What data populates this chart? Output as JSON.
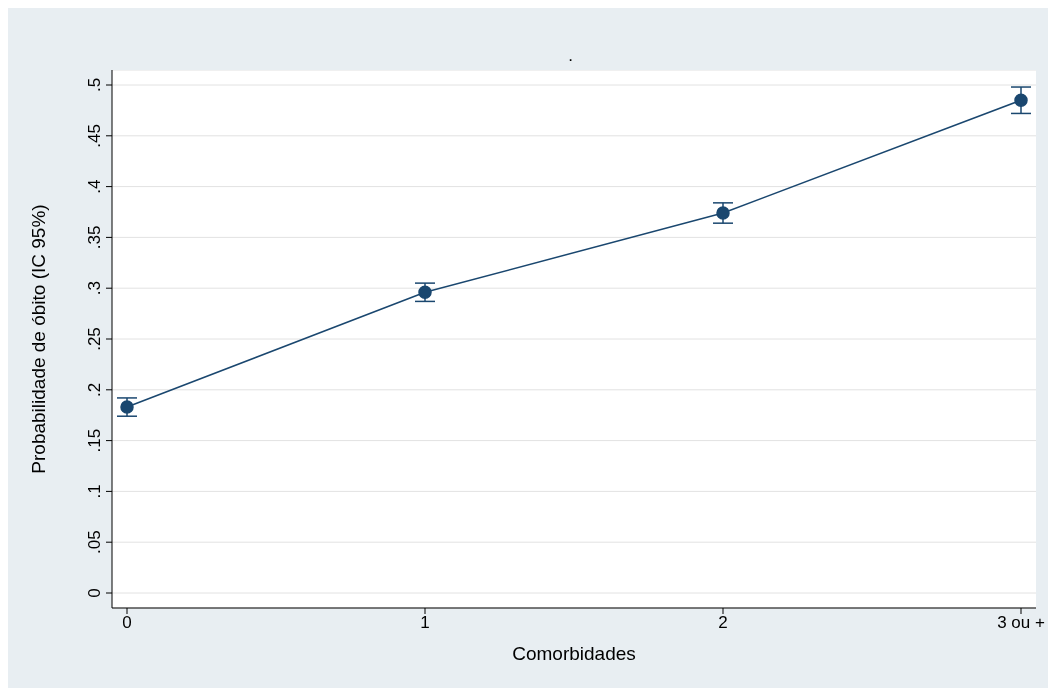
{
  "chart_data": {
    "type": "line",
    "title": ".",
    "xlabel": "Comorbidades",
    "ylabel": "Probabilidade de óbito (IC 95%)",
    "categories": [
      "0",
      "1",
      "2",
      "3 ou +"
    ],
    "series": [
      {
        "color": "#1a476f",
        "values": [
          0.183,
          0.296,
          0.374,
          0.485
        ],
        "errors": [
          0.009,
          0.009,
          0.01,
          0.013
        ]
      }
    ],
    "ylim": [
      0,
      0.5
    ],
    "yticks": [
      {
        "value": 0,
        "label": "0"
      },
      {
        "value": 0.05,
        "label": ".05"
      },
      {
        "value": 0.1,
        "label": ".1"
      },
      {
        "value": 0.15,
        "label": ".15"
      },
      {
        "value": 0.2,
        "label": ".2"
      },
      {
        "value": 0.25,
        "label": ".25"
      },
      {
        "value": 0.3,
        "label": ".3"
      },
      {
        "value": 0.35,
        "label": ".35"
      },
      {
        "value": 0.4,
        "label": ".4"
      },
      {
        "value": 0.45,
        "label": ".45"
      },
      {
        "value": 0.5,
        "label": ".5"
      }
    ],
    "grid": "y",
    "marker": "circle",
    "line_style": "solid"
  }
}
